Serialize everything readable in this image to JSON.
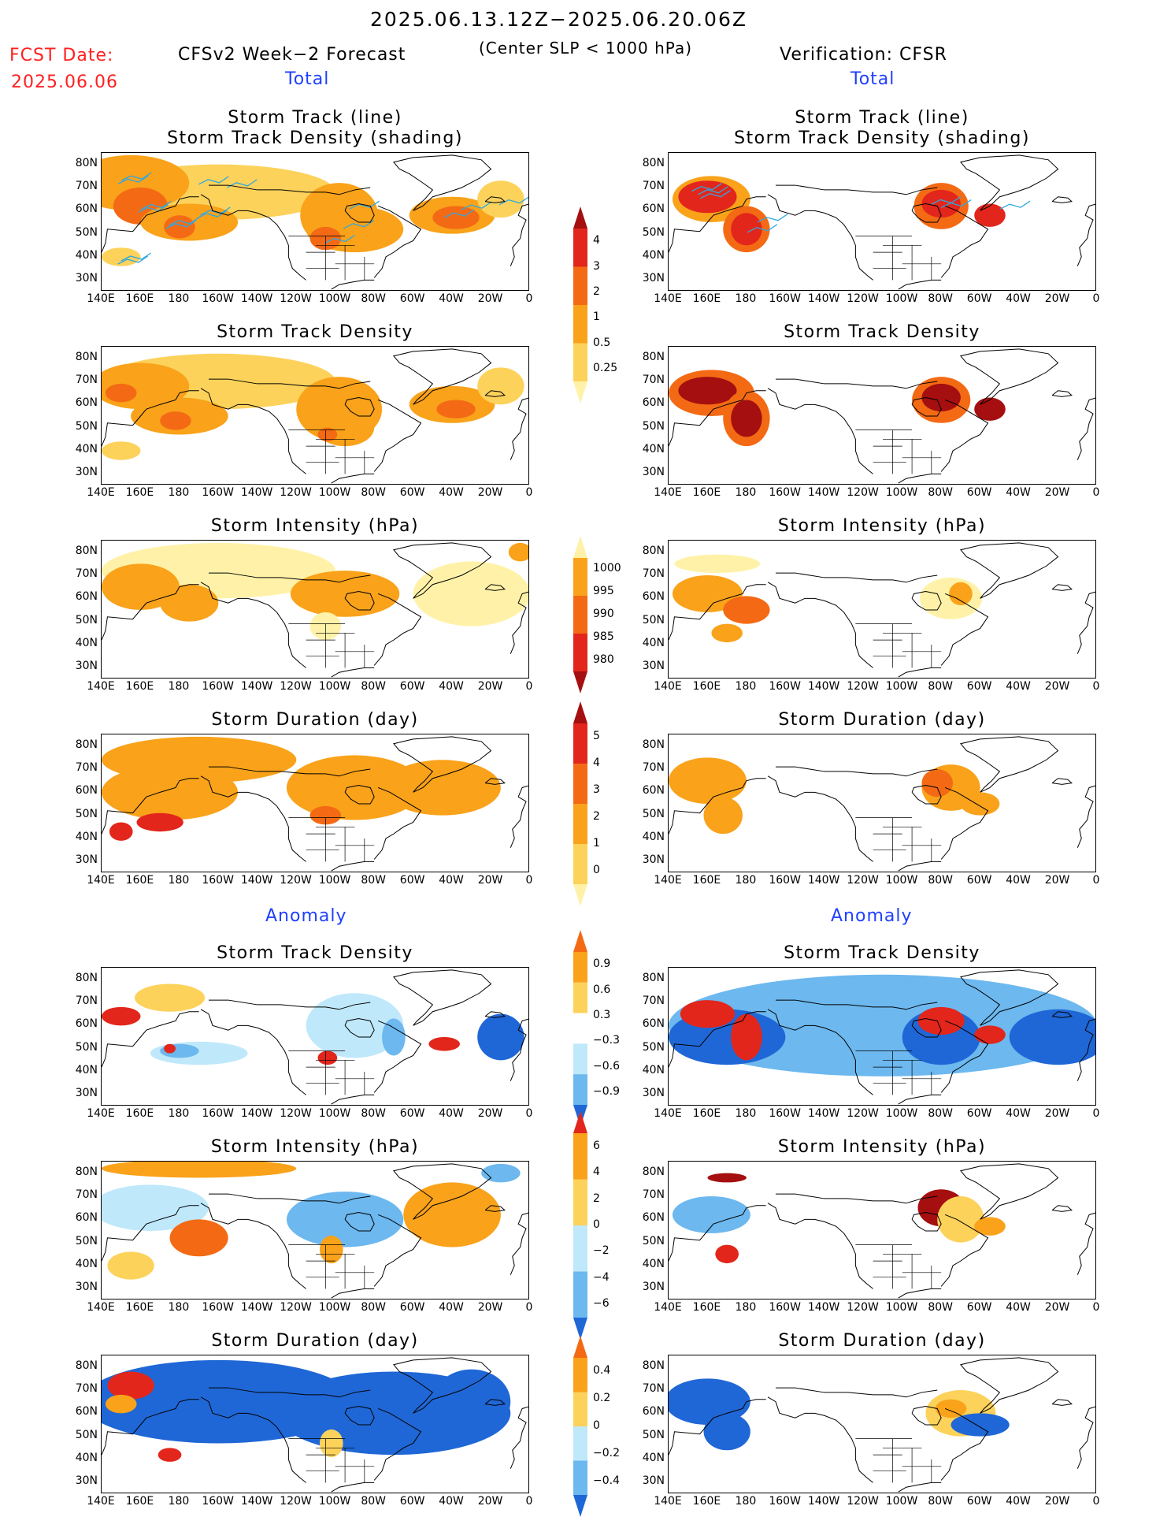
{
  "header": {
    "date_range": "2025.06.13.12Z−2025.06.20.06Z",
    "fcst_label": "FCST Date:",
    "fcst_date": "2025.06.06",
    "left_title": "CFSv2 Week−2 Forecast",
    "center_note": "(Center SLP < 1000 hPa)",
    "right_title": "Verification: CFSR",
    "left_total": "Total",
    "right_total": "Total",
    "left_anomaly": "Anomaly",
    "right_anomaly": "Anomaly"
  },
  "panel_titles": {
    "track_line": "Storm Track (line)",
    "track_density_shading": "Storm Track Density (shading)",
    "track_density": "Storm Track Density",
    "intensity": "Storm Intensity (hPa)",
    "duration": "Storm Duration (day)"
  },
  "axes": {
    "lat_labels": [
      "80N",
      "70N",
      "60N",
      "50N",
      "40N",
      "30N"
    ],
    "lon_labels": [
      "140E",
      "160E",
      "180",
      "160W",
      "140W",
      "120W",
      "100W",
      "80W",
      "60W",
      "40W",
      "20W",
      "0"
    ]
  },
  "colorbars": {
    "density": {
      "labels": [
        "4",
        "3",
        "2",
        "1",
        "0.5",
        "0.25"
      ],
      "colors": [
        "#a50f0f",
        "#e2261b",
        "#f46a14",
        "#f9a21a",
        "#fcd25a",
        "#fff2a8"
      ]
    },
    "intensity": {
      "labels": [
        "1000",
        "995",
        "990",
        "985",
        "980"
      ],
      "colors": [
        "#fff2a8",
        "#f9a21a",
        "#f46a14",
        "#e2261b",
        "#a50f0f"
      ]
    },
    "duration": {
      "labels": [
        "5",
        "4",
        "3",
        "2",
        "1",
        "0"
      ],
      "colors": [
        "#a50f0f",
        "#e2261b",
        "#f46a14",
        "#f9a21a",
        "#fcd25a",
        "#fff2a8"
      ]
    },
    "density_anom": {
      "labels": [
        "0.9",
        "0.6",
        "0.3",
        "−0.3",
        "−0.6",
        "−0.9"
      ],
      "colors": [
        "#f46a14",
        "#f9a21a",
        "#fcd25a",
        "#ffffff",
        "#bfe8fb",
        "#6cb8ef",
        "#1f67d6"
      ]
    },
    "intensity_anom": {
      "labels": [
        "6",
        "4",
        "2",
        "0",
        "−2",
        "−4",
        "−6"
      ],
      "colors": [
        "#e2261b",
        "#f9a21a",
        "#fcd25a",
        "#bfe8fb",
        "#6cb8ef",
        "#1f67d6"
      ]
    },
    "duration_anom": {
      "labels": [
        "0.4",
        "0.2",
        "0",
        "−0.2",
        "−0.4"
      ],
      "colors": [
        "#f46a14",
        "#f9a21a",
        "#fcd25a",
        "#bfe8fb",
        "#6cb8ef",
        "#1f67d6"
      ]
    }
  }
}
